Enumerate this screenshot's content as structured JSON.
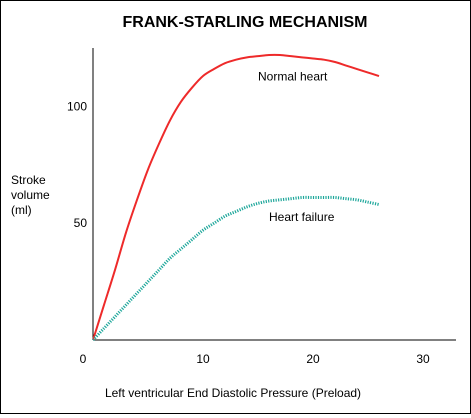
{
  "chart_data": {
    "type": "line",
    "title": "FRANK-STARLING MECHANISM",
    "xlabel": "Left ventricular End Diastolic Pressure (Preload)",
    "ylabel_lines": [
      "Stroke",
      "volume",
      "(ml)"
    ],
    "xlim": [
      0,
      33
    ],
    "ylim": [
      0,
      125
    ],
    "x_ticks": [
      0,
      10,
      20,
      30
    ],
    "x_tick_labels": [
      "0",
      "10",
      "20",
      "30"
    ],
    "y_ticks": [
      50,
      100
    ],
    "y_tick_labels": [
      "50",
      "100"
    ],
    "grid": false,
    "series": [
      {
        "name": "Normal heart",
        "color": "#ee2a2a",
        "style": "solid",
        "points": [
          [
            0,
            0
          ],
          [
            1,
            15
          ],
          [
            2,
            30
          ],
          [
            3,
            46
          ],
          [
            4,
            60
          ],
          [
            5,
            73
          ],
          [
            6,
            84
          ],
          [
            7,
            94
          ],
          [
            8,
            102
          ],
          [
            9,
            108
          ],
          [
            10,
            113
          ],
          [
            11,
            116
          ],
          [
            12,
            118.5
          ],
          [
            13,
            120
          ],
          [
            14,
            121
          ],
          [
            15,
            121.5
          ],
          [
            16,
            122
          ],
          [
            17,
            122
          ],
          [
            18,
            121.5
          ],
          [
            19,
            121
          ],
          [
            20,
            120.5
          ],
          [
            21,
            120
          ],
          [
            22,
            119
          ],
          [
            23,
            117.5
          ],
          [
            24,
            116
          ],
          [
            25,
            114.5
          ],
          [
            26,
            113
          ]
        ]
      },
      {
        "name": "Heart failure",
        "color": "#1ea79b",
        "style": "dotted",
        "points": [
          [
            0,
            0
          ],
          [
            1,
            5
          ],
          [
            2,
            10
          ],
          [
            3,
            15
          ],
          [
            4,
            20
          ],
          [
            5,
            25
          ],
          [
            6,
            30
          ],
          [
            7,
            35
          ],
          [
            8,
            39
          ],
          [
            9,
            43
          ],
          [
            10,
            47
          ],
          [
            11,
            50
          ],
          [
            12,
            53
          ],
          [
            13,
            55
          ],
          [
            14,
            57
          ],
          [
            15,
            58.5
          ],
          [
            16,
            59.5
          ],
          [
            17,
            60
          ],
          [
            18,
            60.5
          ],
          [
            19,
            61
          ],
          [
            20,
            61
          ],
          [
            21,
            61
          ],
          [
            22,
            61
          ],
          [
            23,
            60.5
          ],
          [
            24,
            60
          ],
          [
            25,
            59
          ],
          [
            26,
            58
          ]
        ]
      }
    ],
    "annotations": [
      {
        "text": "Normal heart",
        "x": 15,
        "y": 111
      },
      {
        "text": "Heart failure",
        "x": 16,
        "y": 51
      }
    ]
  }
}
